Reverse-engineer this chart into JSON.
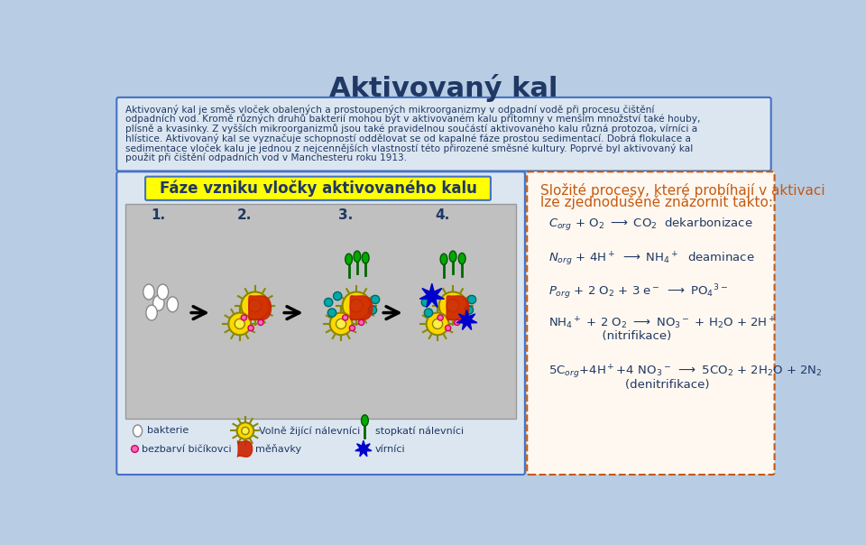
{
  "bg_color": "#b8cce4",
  "title": "Aktivovaný kal",
  "title_color": "#1f3864",
  "title_fontsize": 22,
  "top_box_color": "#dce6f1",
  "top_box_border": "#4472c4",
  "top_text_color": "#1f3864",
  "top_lines": [
    "Aktivovaný kal je směs vloček obalených a prostoupených mikroorganizmy v odpadní vodě při procesu čištění",
    "odpadních vod. Kromě různých druhů bakterií mohou být v aktivovaném kalu přítomny v menším množství také houby,",
    "plísně a kvasinky. Z vyšších mikroorganizmů jsou také pravidelnou součástí aktivovaného kalu různá protozoa, vírníci a",
    "hlístice. Aktivovaný kal se vyznačuje schopností oddělovat se od kapalné fáze prostou sedimentací. Dobrá flokulace a",
    "sedimentace vloček kalu je jednou z nejcennějších vlastností této přirozené směsné kultury. Poprvé byl aktivovaný kal",
    "použit při čištění odpadních vod v Manchesteru roku 1913."
  ],
  "left_box_color": "#dce6f1",
  "left_box_border": "#4472c4",
  "left_diagram_bg": "#c0c0c0",
  "left_title": "Fáze vzniku vločky aktivovaného kalu",
  "left_title_bg": "#ffff00",
  "left_title_color": "#1f3864",
  "right_box_color": "#fff8f0",
  "right_box_border": "#c55a11",
  "right_title_line1": "Složité procesy, které probíhají v aktivaci",
  "right_title_line2": "lze zjednodušeně znázornit takto:",
  "right_title_color": "#c55a11",
  "eq_color": "#1f3864",
  "legend_text_color": "#1f3864"
}
